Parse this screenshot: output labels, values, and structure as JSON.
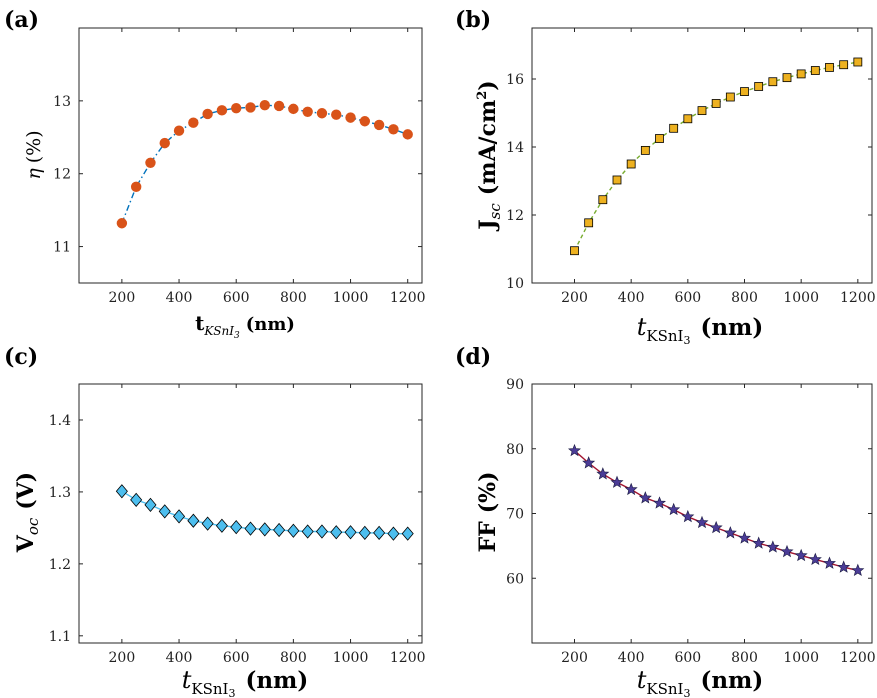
{
  "chart_data": [
    {
      "id": "a",
      "panel_label": "(a)",
      "type": "line",
      "title": "",
      "xlabel": "t_KSnI3 (nm)",
      "ylabel": "η (%)",
      "xlim": [
        50,
        1250
      ],
      "ylim": [
        10.5,
        14
      ],
      "xticks": [
        200,
        400,
        600,
        800,
        1000,
        1200
      ],
      "yticks": [
        11,
        12,
        13
      ],
      "marker": "circle",
      "marker_color": "#D95319",
      "line_color": "#0072BD",
      "line_style": "dash-dot",
      "x": [
        200,
        250,
        300,
        350,
        400,
        450,
        500,
        550,
        600,
        650,
        700,
        750,
        800,
        850,
        900,
        950,
        1000,
        1050,
        1100,
        1150,
        1200
      ],
      "values": [
        11.32,
        11.82,
        12.15,
        12.42,
        12.59,
        12.7,
        12.82,
        12.87,
        12.9,
        12.91,
        12.94,
        12.93,
        12.89,
        12.85,
        12.83,
        12.81,
        12.77,
        12.72,
        12.67,
        12.61,
        12.54
      ]
    },
    {
      "id": "b",
      "panel_label": "(b)",
      "type": "line",
      "title": "",
      "xlabel": "t_KSnI3 (nm)",
      "ylabel": "J_sc (mA/cm²)",
      "xlim": [
        50,
        1250
      ],
      "ylim": [
        10,
        17.5
      ],
      "xticks": [
        200,
        400,
        600,
        800,
        1000,
        1200
      ],
      "yticks": [
        10,
        12,
        14,
        16
      ],
      "marker": "square",
      "marker_color": "#EDB120",
      "line_color": "#77AC30",
      "line_style": "dashed",
      "x": [
        200,
        250,
        300,
        350,
        400,
        450,
        500,
        550,
        600,
        650,
        700,
        750,
        800,
        850,
        900,
        950,
        1000,
        1050,
        1100,
        1150,
        1200
      ],
      "values": [
        10.95,
        11.77,
        12.45,
        13.03,
        13.5,
        13.9,
        14.25,
        14.55,
        14.83,
        15.07,
        15.28,
        15.47,
        15.63,
        15.78,
        15.92,
        16.04,
        16.15,
        16.25,
        16.34,
        16.42,
        16.5
      ]
    },
    {
      "id": "c",
      "panel_label": "(c)",
      "type": "line",
      "title": "",
      "xlabel": "t_KSnI3 (nm)",
      "ylabel": "V_oc (V)",
      "xlim": [
        50,
        1250
      ],
      "ylim": [
        1.09,
        1.45
      ],
      "xticks": [
        200,
        400,
        600,
        800,
        1000,
        1200
      ],
      "yticks": [
        1.1,
        1.2,
        1.3,
        1.4
      ],
      "marker": "diamond",
      "marker_color": "#4DBEEE",
      "line_color": "#4DBEEE",
      "line_style": "solid",
      "x": [
        200,
        250,
        300,
        350,
        400,
        450,
        500,
        550,
        600,
        650,
        700,
        750,
        800,
        850,
        900,
        950,
        1000,
        1050,
        1100,
        1150,
        1200
      ],
      "values": [
        1.301,
        1.289,
        1.282,
        1.273,
        1.266,
        1.26,
        1.256,
        1.253,
        1.251,
        1.249,
        1.248,
        1.247,
        1.246,
        1.245,
        1.245,
        1.244,
        1.244,
        1.243,
        1.243,
        1.242,
        1.242
      ]
    },
    {
      "id": "d",
      "panel_label": "(d)",
      "type": "line",
      "title": "",
      "xlabel": "t_KSnI3 (nm)",
      "ylabel": "FF (%)",
      "xlim": [
        50,
        1250
      ],
      "ylim": [
        50,
        90
      ],
      "xticks": [
        200,
        400,
        600,
        800,
        1000,
        1200
      ],
      "yticks": [
        60,
        70,
        80,
        90
      ],
      "marker": "star",
      "marker_color": "#4B3C96",
      "line_color": "#A2142F",
      "line_style": "solid",
      "x": [
        200,
        250,
        300,
        350,
        400,
        450,
        500,
        550,
        600,
        650,
        700,
        750,
        800,
        850,
        900,
        950,
        1000,
        1050,
        1100,
        1150,
        1200
      ],
      "values": [
        79.7,
        77.8,
        76.1,
        74.8,
        73.7,
        72.4,
        71.6,
        70.6,
        69.5,
        68.6,
        67.8,
        67.0,
        66.2,
        65.4,
        64.8,
        64.1,
        63.5,
        62.9,
        62.3,
        61.7,
        61.2
      ]
    }
  ]
}
